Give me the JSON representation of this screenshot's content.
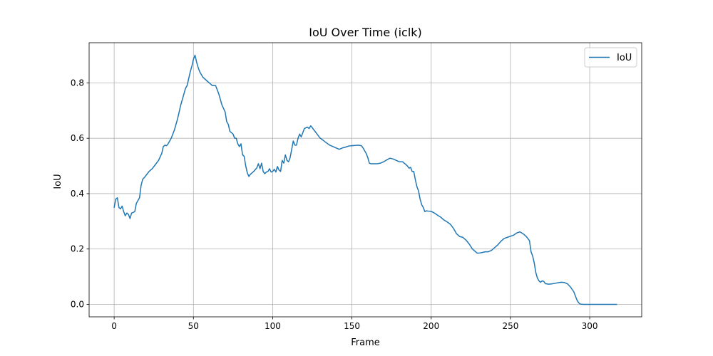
{
  "chart_data": {
    "type": "line",
    "title": "IoU Over Time (iclk)",
    "xlabel": "Frame",
    "ylabel": "IoU",
    "xlim": [
      -15.8,
      332.8
    ],
    "ylim": [
      -0.045,
      0.945
    ],
    "xticks": [
      0,
      50,
      100,
      150,
      200,
      250,
      300
    ],
    "yticks": [
      0.0,
      0.2,
      0.4,
      0.6,
      0.8
    ],
    "ytick_labels": [
      "0.0",
      "0.2",
      "0.4",
      "0.6",
      "0.8"
    ],
    "grid": true,
    "legend_position": "top-right",
    "series": [
      {
        "name": "IoU",
        "color": "#1f77b4",
        "points": [
          [
            0,
            0.35
          ],
          [
            1,
            0.38
          ],
          [
            2,
            0.385
          ],
          [
            3,
            0.35
          ],
          [
            4,
            0.345
          ],
          [
            5,
            0.355
          ],
          [
            6,
            0.335
          ],
          [
            7,
            0.32
          ],
          [
            8,
            0.33
          ],
          [
            9,
            0.325
          ],
          [
            10,
            0.31
          ],
          [
            11,
            0.33
          ],
          [
            12,
            0.332
          ],
          [
            13,
            0.335
          ],
          [
            14,
            0.365
          ],
          [
            15,
            0.375
          ],
          [
            16,
            0.385
          ],
          [
            17,
            0.43
          ],
          [
            18,
            0.452
          ],
          [
            19,
            0.458
          ],
          [
            20,
            0.465
          ],
          [
            22,
            0.48
          ],
          [
            24,
            0.49
          ],
          [
            26,
            0.505
          ],
          [
            28,
            0.52
          ],
          [
            30,
            0.545
          ],
          [
            31,
            0.57
          ],
          [
            32,
            0.575
          ],
          [
            33,
            0.573
          ],
          [
            34,
            0.58
          ],
          [
            36,
            0.6
          ],
          [
            38,
            0.63
          ],
          [
            40,
            0.67
          ],
          [
            42,
            0.72
          ],
          [
            44,
            0.76
          ],
          [
            45,
            0.78
          ],
          [
            46,
            0.79
          ],
          [
            47,
            0.815
          ],
          [
            48,
            0.84
          ],
          [
            49,
            0.86
          ],
          [
            50,
            0.885
          ],
          [
            51,
            0.9
          ],
          [
            52,
            0.875
          ],
          [
            53,
            0.855
          ],
          [
            54,
            0.84
          ],
          [
            56,
            0.82
          ],
          [
            58,
            0.81
          ],
          [
            60,
            0.8
          ],
          [
            62,
            0.79
          ],
          [
            64,
            0.79
          ],
          [
            66,
            0.76
          ],
          [
            68,
            0.72
          ],
          [
            70,
            0.695
          ],
          [
            71,
            0.66
          ],
          [
            72,
            0.65
          ],
          [
            73,
            0.625
          ],
          [
            74,
            0.62
          ],
          [
            75,
            0.615
          ],
          [
            76,
            0.6
          ],
          [
            77,
            0.6
          ],
          [
            78,
            0.58
          ],
          [
            79,
            0.57
          ],
          [
            80,
            0.58
          ],
          [
            81,
            0.54
          ],
          [
            82,
            0.535
          ],
          [
            83,
            0.5
          ],
          [
            84,
            0.475
          ],
          [
            85,
            0.462
          ],
          [
            86,
            0.47
          ],
          [
            88,
            0.48
          ],
          [
            90,
            0.493
          ],
          [
            91,
            0.508
          ],
          [
            92,
            0.49
          ],
          [
            93,
            0.51
          ],
          [
            94,
            0.48
          ],
          [
            95,
            0.472
          ],
          [
            96,
            0.478
          ],
          [
            97,
            0.48
          ],
          [
            98,
            0.49
          ],
          [
            99,
            0.478
          ],
          [
            100,
            0.48
          ],
          [
            101,
            0.488
          ],
          [
            102,
            0.478
          ],
          [
            103,
            0.498
          ],
          [
            104,
            0.485
          ],
          [
            105,
            0.48
          ],
          [
            106,
            0.52
          ],
          [
            107,
            0.51
          ],
          [
            108,
            0.54
          ],
          [
            109,
            0.52
          ],
          [
            110,
            0.515
          ],
          [
            111,
            0.53
          ],
          [
            112,
            0.56
          ],
          [
            113,
            0.59
          ],
          [
            114,
            0.575
          ],
          [
            115,
            0.575
          ],
          [
            116,
            0.6
          ],
          [
            117,
            0.615
          ],
          [
            118,
            0.605
          ],
          [
            119,
            0.62
          ],
          [
            120,
            0.635
          ],
          [
            121,
            0.638
          ],
          [
            122,
            0.64
          ],
          [
            123,
            0.635
          ],
          [
            124,
            0.645
          ],
          [
            125,
            0.638
          ],
          [
            126,
            0.63
          ],
          [
            128,
            0.615
          ],
          [
            130,
            0.6
          ],
          [
            132,
            0.592
          ],
          [
            134,
            0.583
          ],
          [
            136,
            0.575
          ],
          [
            138,
            0.57
          ],
          [
            140,
            0.565
          ],
          [
            142,
            0.56
          ],
          [
            144,
            0.565
          ],
          [
            146,
            0.568
          ],
          [
            148,
            0.572
          ],
          [
            150,
            0.573
          ],
          [
            152,
            0.574
          ],
          [
            154,
            0.575
          ],
          [
            156,
            0.573
          ],
          [
            157,
            0.565
          ],
          [
            158,
            0.555
          ],
          [
            159,
            0.545
          ],
          [
            160,
            0.53
          ],
          [
            161,
            0.51
          ],
          [
            162,
            0.508
          ],
          [
            164,
            0.508
          ],
          [
            166,
            0.508
          ],
          [
            168,
            0.51
          ],
          [
            170,
            0.515
          ],
          [
            172,
            0.522
          ],
          [
            174,
            0.528
          ],
          [
            176,
            0.525
          ],
          [
            178,
            0.52
          ],
          [
            180,
            0.515
          ],
          [
            182,
            0.515
          ],
          [
            184,
            0.505
          ],
          [
            185,
            0.5
          ],
          [
            186,
            0.492
          ],
          [
            187,
            0.495
          ],
          [
            188,
            0.48
          ],
          [
            189,
            0.48
          ],
          [
            190,
            0.45
          ],
          [
            191,
            0.425
          ],
          [
            192,
            0.41
          ],
          [
            193,
            0.38
          ],
          [
            194,
            0.36
          ],
          [
            195,
            0.35
          ],
          [
            196,
            0.335
          ],
          [
            197,
            0.338
          ],
          [
            198,
            0.337
          ],
          [
            200,
            0.336
          ],
          [
            202,
            0.33
          ],
          [
            204,
            0.322
          ],
          [
            206,
            0.315
          ],
          [
            208,
            0.305
          ],
          [
            210,
            0.298
          ],
          [
            212,
            0.29
          ],
          [
            214,
            0.275
          ],
          [
            216,
            0.255
          ],
          [
            218,
            0.245
          ],
          [
            220,
            0.242
          ],
          [
            222,
            0.232
          ],
          [
            224,
            0.218
          ],
          [
            226,
            0.2
          ],
          [
            228,
            0.19
          ],
          [
            229,
            0.185
          ],
          [
            230,
            0.185
          ],
          [
            232,
            0.187
          ],
          [
            234,
            0.19
          ],
          [
            236,
            0.19
          ],
          [
            238,
            0.195
          ],
          [
            240,
            0.205
          ],
          [
            242,
            0.215
          ],
          [
            244,
            0.228
          ],
          [
            246,
            0.238
          ],
          [
            248,
            0.242
          ],
          [
            250,
            0.246
          ],
          [
            252,
            0.25
          ],
          [
            254,
            0.258
          ],
          [
            256,
            0.262
          ],
          [
            258,
            0.255
          ],
          [
            260,
            0.245
          ],
          [
            262,
            0.23
          ],
          [
            263,
            0.19
          ],
          [
            264,
            0.175
          ],
          [
            265,
            0.15
          ],
          [
            266,
            0.115
          ],
          [
            267,
            0.095
          ],
          [
            268,
            0.085
          ],
          [
            269,
            0.08
          ],
          [
            270,
            0.085
          ],
          [
            271,
            0.083
          ],
          [
            272,
            0.075
          ],
          [
            274,
            0.073
          ],
          [
            276,
            0.074
          ],
          [
            278,
            0.076
          ],
          [
            280,
            0.078
          ],
          [
            282,
            0.08
          ],
          [
            284,
            0.079
          ],
          [
            286,
            0.074
          ],
          [
            288,
            0.062
          ],
          [
            290,
            0.045
          ],
          [
            291,
            0.03
          ],
          [
            292,
            0.015
          ],
          [
            293,
            0.006
          ],
          [
            294,
            0.001
          ],
          [
            296,
            0.0
          ],
          [
            300,
            0.0
          ],
          [
            310,
            0.0
          ],
          [
            317,
            0.0
          ]
        ]
      }
    ]
  }
}
